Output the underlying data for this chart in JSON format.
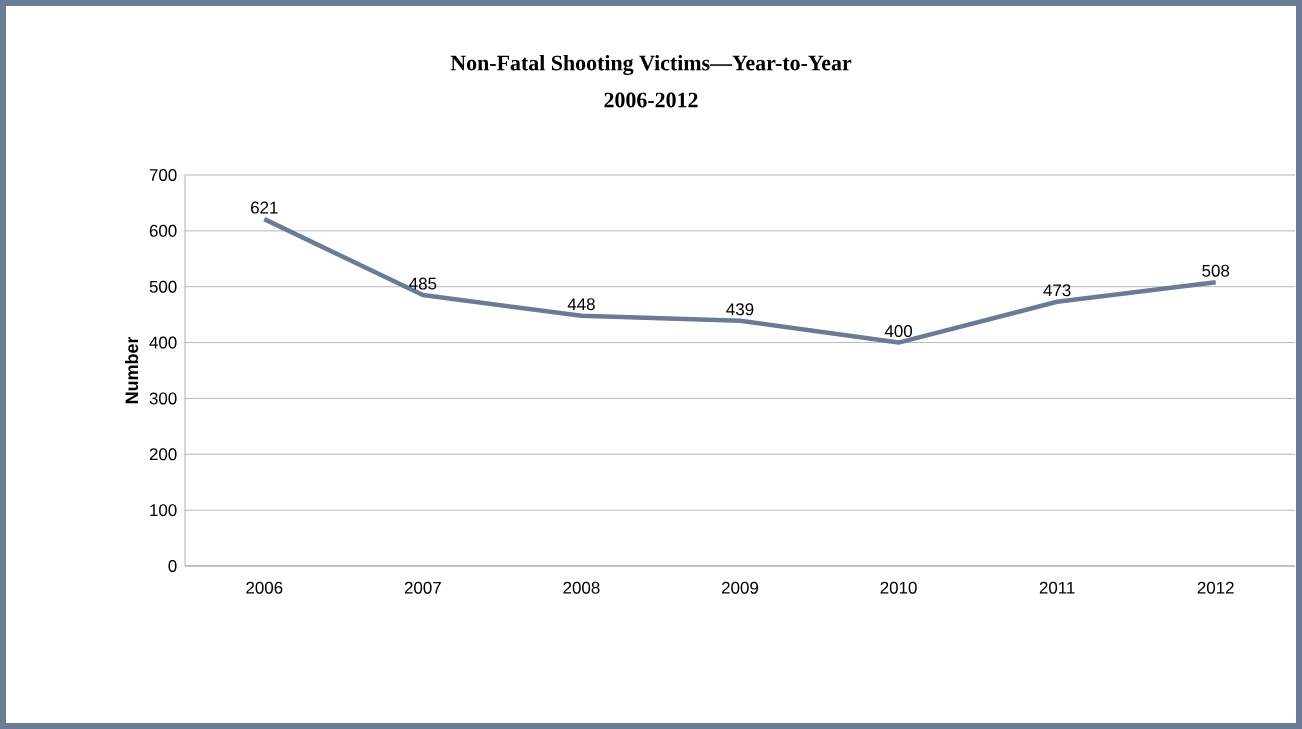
{
  "chart_data": {
    "type": "line",
    "title": "Non-Fatal Shooting Victims—Year-to-Year",
    "subtitle": "2006-2012",
    "ylabel": "Number",
    "categories": [
      "2006",
      "2007",
      "2008",
      "2009",
      "2010",
      "2011",
      "2012"
    ],
    "values": [
      621,
      485,
      448,
      439,
      400,
      473,
      508
    ],
    "color": "#6b7b93",
    "ylim": [
      0,
      700
    ],
    "yticks": [
      0,
      100,
      200,
      300,
      400,
      500,
      600,
      700
    ],
    "grid": "y",
    "data_labels": true
  }
}
